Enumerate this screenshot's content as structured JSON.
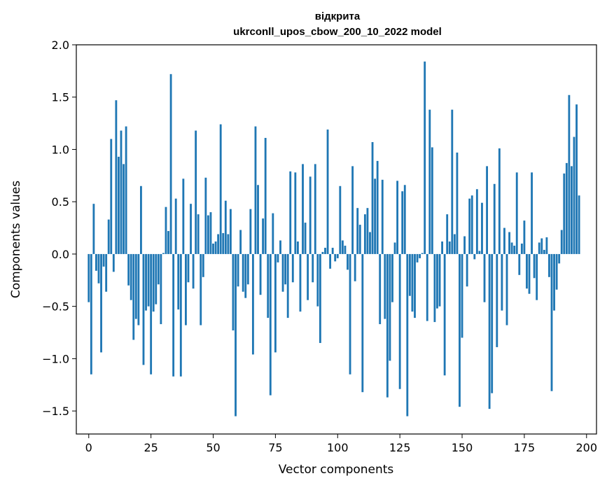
{
  "chart_data": {
    "type": "bar",
    "title_line1": "відкрита",
    "title_line2": "ukrconll_upos_cbow_200_10_2022 model",
    "xlabel": "Vector components",
    "ylabel": "Components values",
    "xlim": [
      -5,
      204
    ],
    "ylim": [
      -1.72,
      2.0
    ],
    "x_ticks": [
      0,
      25,
      50,
      75,
      100,
      125,
      150,
      175,
      200
    ],
    "x_tick_labels": [
      "0",
      "25",
      "50",
      "75",
      "100",
      "125",
      "150",
      "175",
      "200"
    ],
    "y_ticks": [
      -1.5,
      -1.0,
      -0.5,
      0.0,
      0.5,
      1.0,
      1.5,
      2.0
    ],
    "y_tick_labels": [
      "−1.5",
      "−1.0",
      "−0.5",
      "0.0",
      "0.5",
      "1.0",
      "1.5",
      "2.0"
    ],
    "grid": false,
    "bar_color": "#1f77b4",
    "values": [
      -0.46,
      -1.15,
      0.48,
      -0.16,
      -0.28,
      -0.94,
      -0.12,
      -0.36,
      0.33,
      1.1,
      -0.17,
      1.47,
      0.93,
      1.18,
      0.86,
      1.22,
      -0.3,
      -0.44,
      -0.82,
      -0.62,
      -0.68,
      0.65,
      -1.06,
      -0.54,
      -0.5,
      -1.15,
      -0.55,
      -0.48,
      -0.29,
      -0.67,
      0.01,
      0.45,
      0.22,
      1.72,
      -1.17,
      0.53,
      -0.53,
      -1.17,
      0.72,
      -0.68,
      -0.27,
      0.48,
      -0.33,
      1.18,
      0.38,
      -0.68,
      -0.22,
      0.73,
      0.37,
      0.4,
      0.1,
      0.12,
      0.19,
      1.24,
      0.2,
      0.51,
      0.19,
      0.43,
      -0.73,
      -1.55,
      -0.31,
      0.23,
      -0.36,
      -0.42,
      -0.29,
      0.43,
      -0.96,
      1.22,
      0.66,
      -0.39,
      0.34,
      1.11,
      -0.61,
      -1.35,
      0.39,
      -0.94,
      -0.08,
      0.13,
      -0.36,
      -0.29,
      -0.61,
      0.79,
      -0.27,
      0.78,
      0.12,
      -0.55,
      0.86,
      0.3,
      -0.44,
      0.74,
      -0.27,
      0.86,
      -0.5,
      -0.85,
      0.02,
      0.06,
      1.19,
      -0.14,
      0.06,
      -0.07,
      -0.04,
      0.65,
      0.13,
      0.08,
      -0.15,
      -1.15,
      0.84,
      -0.26,
      0.44,
      0.28,
      -1.32,
      0.38,
      0.44,
      0.21,
      1.07,
      0.72,
      0.89,
      -0.67,
      0.71,
      -0.62,
      -1.37,
      -1.02,
      -0.46,
      0.11,
      0.7,
      -1.29,
      0.6,
      0.66,
      -1.55,
      -0.4,
      -0.55,
      -0.61,
      -0.08,
      -0.04,
      0.01,
      1.84,
      -0.64,
      1.38,
      1.02,
      -0.65,
      -0.52,
      -0.5,
      0.12,
      -1.16,
      0.38,
      0.12,
      1.38,
      0.19,
      0.97,
      -1.46,
      -0.8,
      0.17,
      -0.31,
      0.53,
      0.56,
      -0.05,
      0.62,
      0.03,
      0.49,
      -0.46,
      0.84,
      -1.48,
      -1.33,
      0.67,
      -0.89,
      1.01,
      -0.54,
      0.25,
      -0.68,
      0.21,
      0.11,
      0.08,
      0.78,
      -0.2,
      0.1,
      0.32,
      -0.33,
      -0.38,
      0.78,
      -0.23,
      -0.44,
      0.11,
      0.15,
      0.04,
      0.16,
      -0.22,
      -1.31,
      -0.54,
      -0.34,
      -0.09,
      0.23,
      0.77,
      0.87,
      1.52,
      0.84,
      1.12,
      1.43,
      0.56
    ]
  }
}
